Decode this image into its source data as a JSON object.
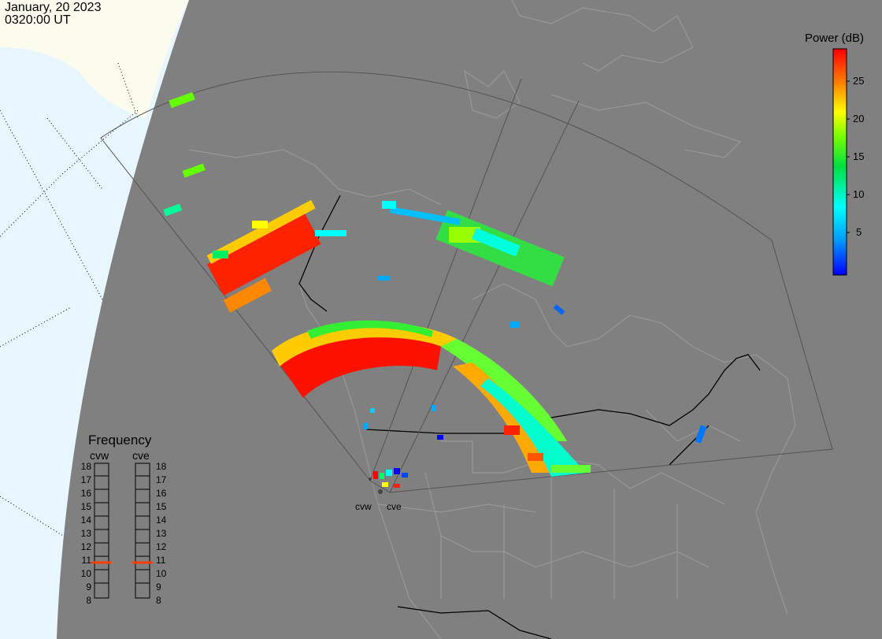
{
  "header": {
    "date": "January, 20 2023",
    "time": "0320:00 UT"
  },
  "colorbar": {
    "title": "Power (dB)",
    "ticks": [
      "25",
      "20",
      "15",
      "10",
      "5"
    ],
    "tick_values": [
      25,
      20,
      15,
      10,
      5
    ],
    "range": [
      0,
      30
    ],
    "colors": [
      "#0000ff",
      "#00bfff",
      "#00ffff",
      "#00e040",
      "#80ff00",
      "#ffff00",
      "#ff8000",
      "#ff0000"
    ]
  },
  "frequency_panel": {
    "title": "Frequency",
    "radars": [
      "cvw",
      "cve"
    ],
    "scale": [
      "18",
      "17",
      "16",
      "15",
      "14",
      "13",
      "12",
      "11",
      "10",
      "9",
      "8"
    ],
    "selected": {
      "cvw": "11",
      "cve": "11"
    },
    "marker_color": "#ff4000"
  },
  "radar_labels": [
    "cvw",
    "cve"
  ],
  "colors": {
    "land": "#808080",
    "night_space": "#e8f6ff",
    "day_land": "#fcfcee",
    "fov_line": "#5a5a5a",
    "border": "#000000"
  }
}
